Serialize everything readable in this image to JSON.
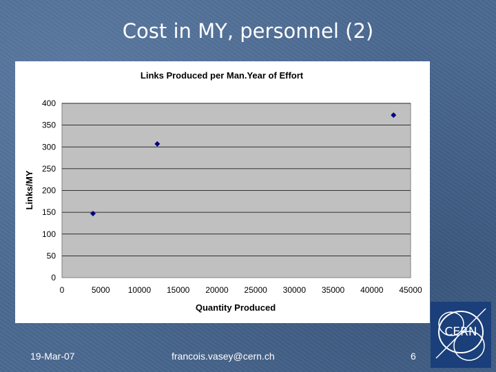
{
  "slide": {
    "title": "Cost in MY, personnel (2)",
    "footer_date": "19-Mar-07",
    "footer_email": "francois.vasey@cern.ch",
    "page_number": "6",
    "logo_text": "CERN"
  },
  "colors": {
    "background": "#4a6890",
    "plot_area": "#c0c0c0",
    "marker": "#000080",
    "logo_bg": "#1a3f7a"
  },
  "chart_data": {
    "type": "scatter",
    "title": "Links Produced per Man.Year of Effort",
    "xlabel": "Quantity Produced",
    "ylabel": "Links/MY",
    "xlim": [
      0,
      45000
    ],
    "ylim": [
      0,
      400
    ],
    "xticks": [
      0,
      5000,
      10000,
      15000,
      20000,
      25000,
      30000,
      35000,
      40000,
      45000
    ],
    "yticks": [
      0,
      50,
      100,
      150,
      200,
      250,
      300,
      350,
      400
    ],
    "grid": true,
    "legend": "none",
    "marker": "diamond",
    "series": [
      {
        "points": [
          {
            "x": 4000,
            "y": 147
          },
          {
            "x": 12300,
            "y": 307
          },
          {
            "x": 42800,
            "y": 373
          }
        ]
      }
    ]
  }
}
